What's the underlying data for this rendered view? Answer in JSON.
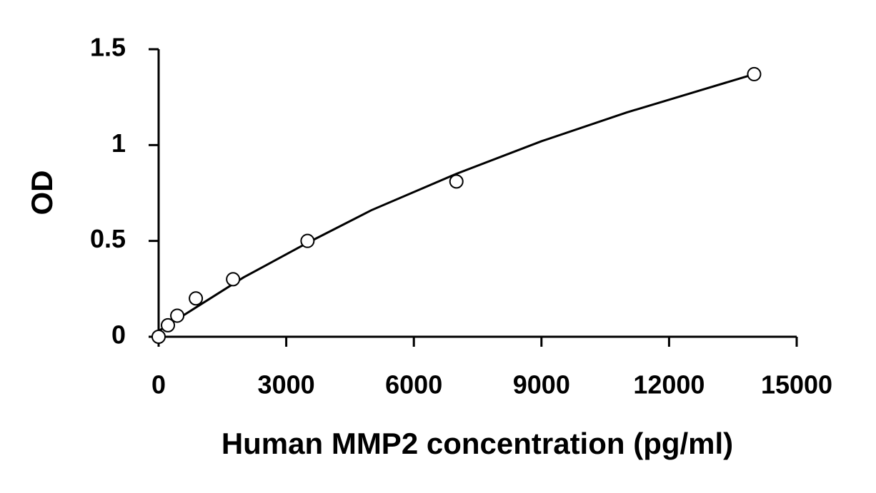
{
  "chart_data": {
    "type": "scatter",
    "xlabel": "Human MMP2 concentration (pg/ml)",
    "ylabel": "OD",
    "xlim": [
      0,
      15000
    ],
    "xticks": [
      0,
      3000,
      6000,
      9000,
      12000,
      15000
    ],
    "ylim": [
      0,
      1.5
    ],
    "yticks": [
      0,
      0.5,
      1,
      1.5
    ],
    "series": [
      {
        "type": "scatter",
        "color": "#000000",
        "x": [
          0,
          219,
          438,
          875,
          1750,
          3500,
          7000,
          14000
        ],
        "values": [
          0,
          0.06,
          0.11,
          0.2,
          0.3,
          0.5,
          0.81,
          1.37
        ]
      },
      {
        "type": "line",
        "color": "#000000",
        "x": [
          0,
          1000,
          2000,
          3500,
          5000,
          7000,
          9000,
          11000,
          12500,
          14000
        ],
        "values": [
          0.03,
          0.17,
          0.31,
          0.49,
          0.66,
          0.85,
          1.02,
          1.17,
          1.27,
          1.37
        ]
      }
    ]
  }
}
